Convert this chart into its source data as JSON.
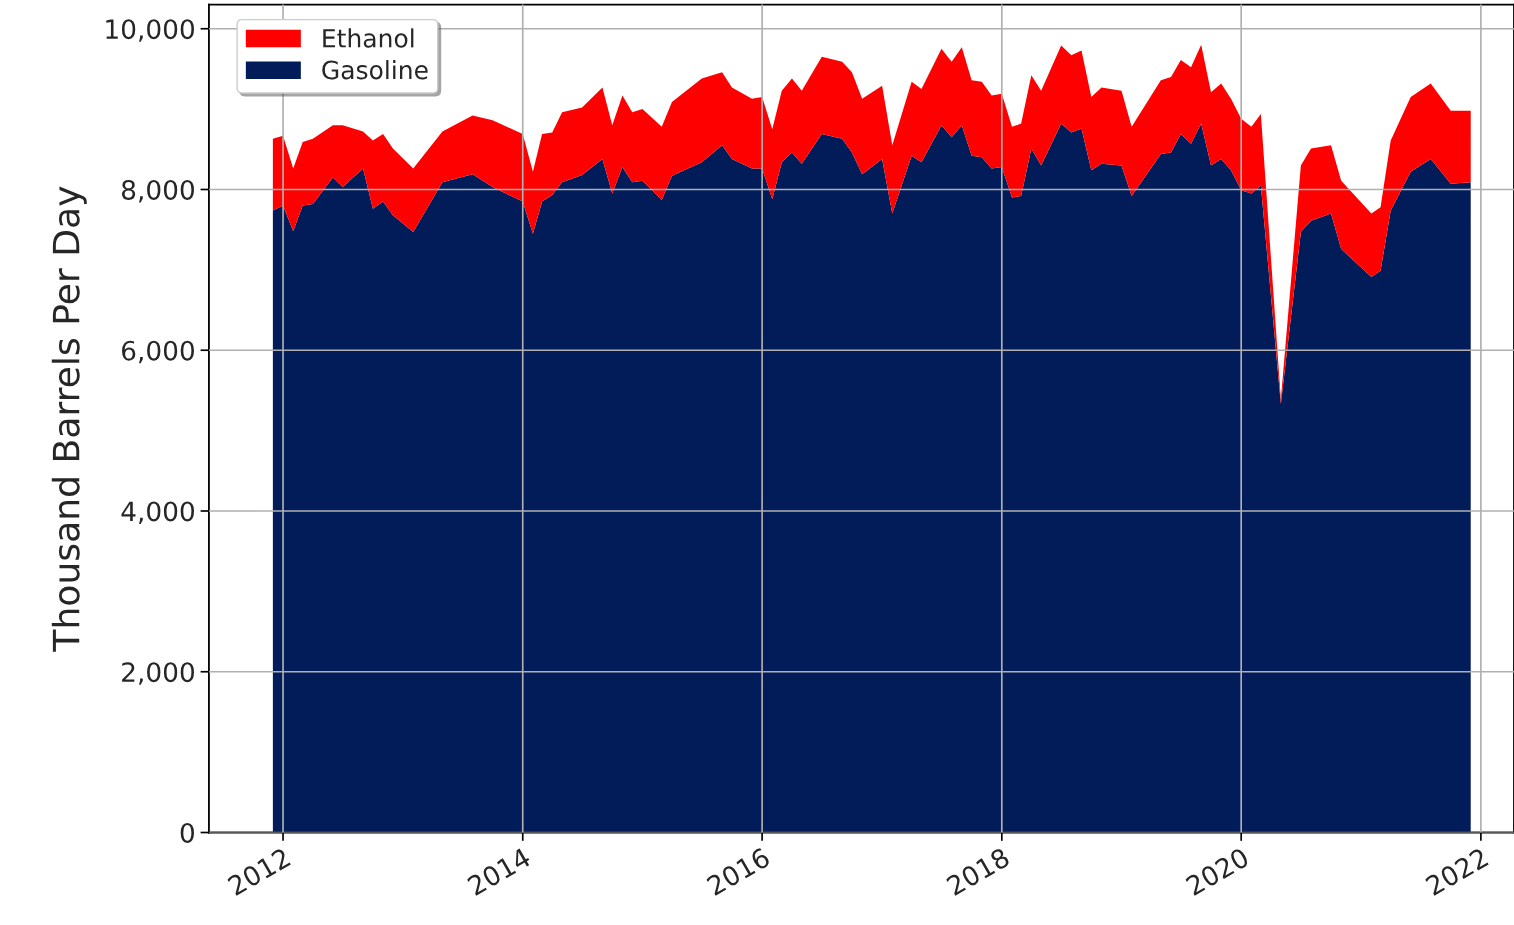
{
  "chart_data": {
    "type": "area",
    "stacked": true,
    "ylabel": "Thousand Barrels Per Day",
    "x": [
      "2011-12",
      "2012-01",
      "2012-02",
      "2012-03",
      "2012-04",
      "2012-06",
      "2012-07",
      "2012-09",
      "2012-10",
      "2012-11",
      "2012-12",
      "2013-02",
      "2013-05",
      "2013-08",
      "2013-10",
      "2014-01",
      "2014-02",
      "2014-03",
      "2014-04",
      "2014-05",
      "2014-07",
      "2014-09",
      "2014-10",
      "2014-11",
      "2014-12",
      "2015-01",
      "2015-03",
      "2015-04",
      "2015-07",
      "2015-09",
      "2015-10",
      "2015-12",
      "2016-01",
      "2016-02",
      "2016-03",
      "2016-04",
      "2016-05",
      "2016-07",
      "2016-09",
      "2016-10",
      "2016-11",
      "2017-01",
      "2017-02",
      "2017-04",
      "2017-05",
      "2017-07",
      "2017-08",
      "2017-09",
      "2017-10",
      "2017-11",
      "2017-12",
      "2018-01",
      "2018-02",
      "2018-03",
      "2018-04",
      "2018-05",
      "2018-07",
      "2018-08",
      "2018-09",
      "2018-10",
      "2018-11",
      "2019-01",
      "2019-02",
      "2019-05",
      "2019-06",
      "2019-07",
      "2019-08",
      "2019-09",
      "2019-10",
      "2019-11",
      "2019-12",
      "2020-01",
      "2020-02",
      "2020-03",
      "2020-05",
      "2020-07",
      "2020-08",
      "2020-10",
      "2020-11",
      "2021-02",
      "2021-03",
      "2021-04",
      "2021-06",
      "2021-08",
      "2021-10",
      "2021-12"
    ],
    "series": [
      {
        "name": "Gasoline",
        "color": "#021c5a",
        "values": [
          7740,
          7800,
          7480,
          7800,
          7820,
          8150,
          8030,
          8260,
          7760,
          7850,
          7680,
          7470,
          8090,
          8190,
          8030,
          7850,
          7450,
          7850,
          7930,
          8090,
          8180,
          8380,
          7950,
          8280,
          8090,
          8110,
          7870,
          8170,
          8340,
          8550,
          8380,
          8260,
          8260,
          7880,
          8340,
          8460,
          8320,
          8690,
          8630,
          8460,
          8190,
          8380,
          7700,
          8420,
          8340,
          8800,
          8650,
          8800,
          8420,
          8400,
          8260,
          8280,
          7900,
          7920,
          8510,
          8300,
          8820,
          8710,
          8760,
          8240,
          8320,
          8300,
          7920,
          8440,
          8460,
          8690,
          8570,
          8820,
          8300,
          8380,
          8240,
          7990,
          7950,
          8050,
          5330,
          7470,
          7610,
          7700,
          7260,
          6910,
          6990,
          7740,
          8220,
          8380,
          8070,
          8090
        ]
      },
      {
        "name": "Ethanol",
        "color": "#ff0000",
        "values": [
          890,
          870,
          780,
          790,
          810,
          650,
          770,
          460,
          850,
          840,
          830,
          790,
          630,
          730,
          830,
          840,
          770,
          840,
          780,
          870,
          840,
          890,
          850,
          890,
          870,
          890,
          910,
          920,
          1040,
          910,
          890,
          870,
          890,
          870,
          890,
          920,
          910,
          960,
          960,
          1000,
          940,
          910,
          850,
          920,
          910,
          950,
          940,
          970,
          940,
          940,
          910,
          910,
          880,
          900,
          910,
          930,
          970,
          960,
          970,
          910,
          950,
          930,
          860,
          920,
          940,
          920,
          950,
          980,
          910,
          940,
          890,
          890,
          830,
          890,
          60,
          830,
          900,
          850,
          850,
          790,
          790,
          870,
          930,
          940,
          910,
          890
        ]
      }
    ],
    "xlim": [
      "2011-05-20",
      "2022-04-12"
    ],
    "xticks": [
      "2012",
      "2014",
      "2016",
      "2018",
      "2020",
      "2022"
    ],
    "ylim": [
      0,
      10300
    ],
    "yticks": [
      0,
      {
        "value": 2000,
        "label": "2,000"
      },
      {
        "value": 4000,
        "label": "4,000"
      },
      {
        "value": 6000,
        "label": "6,000"
      },
      {
        "value": 8000,
        "label": "8,000"
      },
      {
        "value": 10000,
        "label": "10,000"
      }
    ],
    "grid": true,
    "legend": "top left"
  }
}
